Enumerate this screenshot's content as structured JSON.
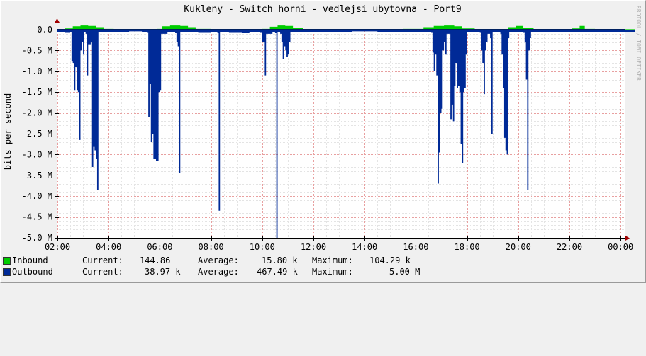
{
  "chart_data": {
    "type": "area",
    "title": "Kukleny - Switch horni - vedlejsi ubytovna - Port9",
    "ylabel": "bits per second",
    "watermark": "RRDTOOL / TOBI OETIKER",
    "y_tick_labels": [
      "0.0",
      "-0.5 M",
      "-1.0 M",
      "-1.5 M",
      "-2.0 M",
      "-2.5 M",
      "-3.0 M",
      "-3.5 M",
      "-4.0 M",
      "-4.5 M",
      "-5.0 M"
    ],
    "y_tick_values": [
      0,
      -0.5,
      -1.0,
      -1.5,
      -2.0,
      -2.5,
      -3.0,
      -3.5,
      -4.0,
      -4.5,
      -5.0
    ],
    "ylim": [
      -5.0,
      0.0
    ],
    "y_unit": "Mbit/s",
    "x_tick_labels": [
      "02:00",
      "04:00",
      "06:00",
      "08:00",
      "10:00",
      "12:00",
      "14:00",
      "16:00",
      "18:00",
      "20:00",
      "22:00",
      "00:00"
    ],
    "x_tick_hours": [
      0,
      2,
      4,
      6,
      8,
      10,
      12,
      14,
      16,
      18,
      20,
      22
    ],
    "x_range_hours": [
      0,
      22.5
    ],
    "grid": true,
    "legend_position": "bottom-left",
    "series": [
      {
        "name": "Inbound",
        "color": "#00cc00",
        "values_note": "",
        "points": [
          [
            0,
            0.01
          ],
          [
            0.3,
            0.03
          ],
          [
            0.6,
            0.08
          ],
          [
            0.9,
            0.1
          ],
          [
            1.2,
            0.09
          ],
          [
            1.5,
            0.06
          ],
          [
            1.8,
            0.02
          ],
          [
            2.2,
            0.01
          ],
          [
            2.8,
            0.01
          ],
          [
            3.5,
            0.01
          ],
          [
            3.9,
            0.02
          ],
          [
            4.1,
            0.08
          ],
          [
            4.4,
            0.1
          ],
          [
            4.8,
            0.09
          ],
          [
            5.1,
            0.06
          ],
          [
            5.4,
            0.02
          ],
          [
            6,
            0.01
          ],
          [
            7,
            0.01
          ],
          [
            8,
            0.02
          ],
          [
            8.3,
            0.07
          ],
          [
            8.6,
            0.1
          ],
          [
            8.9,
            0.09
          ],
          [
            9.2,
            0.05
          ],
          [
            9.6,
            0.01
          ],
          [
            10.5,
            0.01
          ],
          [
            11.5,
            0.01
          ],
          [
            12.5,
            0.01
          ],
          [
            13.5,
            0.02
          ],
          [
            14.3,
            0.06
          ],
          [
            14.7,
            0.09
          ],
          [
            15.1,
            0.1
          ],
          [
            15.5,
            0.08
          ],
          [
            15.8,
            0.03
          ],
          [
            16.3,
            0.01
          ],
          [
            17,
            0.01
          ],
          [
            17.6,
            0.06
          ],
          [
            17.9,
            0.09
          ],
          [
            18.2,
            0.05
          ],
          [
            18.6,
            0.01
          ],
          [
            19.5,
            0.01
          ],
          [
            20.1,
            0.03
          ],
          [
            20.4,
            0.09
          ],
          [
            20.6,
            0.02
          ],
          [
            21,
            0.01
          ],
          [
            22.5,
            0.01
          ]
        ]
      },
      {
        "name": "Outbound",
        "color": "#002a97",
        "points": [
          [
            0,
            -0.05
          ],
          [
            0.3,
            -0.06
          ],
          [
            0.5,
            -0.05
          ],
          [
            0.55,
            -0.75
          ],
          [
            0.6,
            -0.8
          ],
          [
            0.65,
            -1.45
          ],
          [
            0.7,
            -0.9
          ],
          [
            0.75,
            -1.45
          ],
          [
            0.8,
            -1.5
          ],
          [
            0.85,
            -2.65
          ],
          [
            0.9,
            -0.5
          ],
          [
            0.95,
            -0.3
          ],
          [
            1.0,
            -0.6
          ],
          [
            1.05,
            -0.05
          ],
          [
            1.1,
            -0.1
          ],
          [
            1.15,
            -1.1
          ],
          [
            1.2,
            -0.35
          ],
          [
            1.3,
            -0.3
          ],
          [
            1.35,
            -3.3
          ],
          [
            1.4,
            -2.8
          ],
          [
            1.45,
            -2.9
          ],
          [
            1.5,
            -3.1
          ],
          [
            1.55,
            -3.85
          ],
          [
            1.6,
            -0.05
          ],
          [
            2.2,
            -0.05
          ],
          [
            2.8,
            -0.04
          ],
          [
            3.3,
            -0.05
          ],
          [
            3.5,
            -0.06
          ],
          [
            3.55,
            -2.1
          ],
          [
            3.6,
            -1.3
          ],
          [
            3.65,
            -2.7
          ],
          [
            3.7,
            -2.5
          ],
          [
            3.75,
            -3.1
          ],
          [
            3.8,
            -3.1
          ],
          [
            3.85,
            -3.15
          ],
          [
            3.9,
            -3.15
          ],
          [
            3.95,
            -1.5
          ],
          [
            4.0,
            -1.45
          ],
          [
            4.05,
            -0.1
          ],
          [
            4.3,
            -0.05
          ],
          [
            4.6,
            -0.08
          ],
          [
            4.65,
            -0.3
          ],
          [
            4.7,
            -0.4
          ],
          [
            4.75,
            -3.45
          ],
          [
            4.8,
            -0.05
          ],
          [
            5.5,
            -0.06
          ],
          [
            6.0,
            -0.05
          ],
          [
            6.25,
            -0.07
          ],
          [
            6.3,
            -4.35
          ],
          [
            6.35,
            -0.05
          ],
          [
            6.7,
            -0.06
          ],
          [
            7.2,
            -0.07
          ],
          [
            7.5,
            -0.05
          ],
          [
            7.9,
            -0.06
          ],
          [
            8.0,
            -0.3
          ],
          [
            8.05,
            -0.3
          ],
          [
            8.1,
            -1.1
          ],
          [
            8.15,
            -0.1
          ],
          [
            8.4,
            -0.05
          ],
          [
            8.5,
            -0.07
          ],
          [
            8.55,
            -5.0
          ],
          [
            8.6,
            -0.05
          ],
          [
            8.7,
            -0.1
          ],
          [
            8.75,
            -0.3
          ],
          [
            8.8,
            -0.7
          ],
          [
            8.85,
            -0.4
          ],
          [
            8.9,
            -0.5
          ],
          [
            8.95,
            -0.65
          ],
          [
            9.0,
            -0.6
          ],
          [
            9.05,
            -0.3
          ],
          [
            9.1,
            -0.05
          ],
          [
            9.6,
            -0.05
          ],
          [
            10.5,
            -0.05
          ],
          [
            11.5,
            -0.04
          ],
          [
            12.5,
            -0.05
          ],
          [
            13.5,
            -0.05
          ],
          [
            14.6,
            -0.06
          ],
          [
            14.65,
            -0.55
          ],
          [
            14.7,
            -1.0
          ],
          [
            14.75,
            -0.6
          ],
          [
            14.8,
            -1.1
          ],
          [
            14.85,
            -3.7
          ],
          [
            14.9,
            -2.95
          ],
          [
            14.95,
            -2.0
          ],
          [
            15.0,
            -1.9
          ],
          [
            15.05,
            -0.5
          ],
          [
            15.1,
            -0.3
          ],
          [
            15.15,
            -0.6
          ],
          [
            15.2,
            -0.1
          ],
          [
            15.3,
            -0.1
          ],
          [
            15.35,
            -2.15
          ],
          [
            15.4,
            -1.8
          ],
          [
            15.45,
            -2.2
          ],
          [
            15.5,
            -1.35
          ],
          [
            15.55,
            -0.8
          ],
          [
            15.6,
            -1.4
          ],
          [
            15.65,
            -1.35
          ],
          [
            15.7,
            -1.5
          ],
          [
            15.75,
            -2.75
          ],
          [
            15.8,
            -3.2
          ],
          [
            15.85,
            -1.5
          ],
          [
            15.9,
            -1.4
          ],
          [
            15.95,
            -0.6
          ],
          [
            16.0,
            -0.05
          ],
          [
            16.3,
            -0.05
          ],
          [
            16.5,
            -0.06
          ],
          [
            16.55,
            -0.5
          ],
          [
            16.6,
            -0.8
          ],
          [
            16.65,
            -1.55
          ],
          [
            16.7,
            -0.5
          ],
          [
            16.75,
            -0.3
          ],
          [
            16.8,
            -0.1
          ],
          [
            16.9,
            -0.2
          ],
          [
            16.95,
            -2.5
          ],
          [
            17.0,
            -0.05
          ],
          [
            17.3,
            -0.1
          ],
          [
            17.35,
            -0.6
          ],
          [
            17.4,
            -1.4
          ],
          [
            17.45,
            -2.6
          ],
          [
            17.5,
            -2.9
          ],
          [
            17.55,
            -3.0
          ],
          [
            17.6,
            -0.2
          ],
          [
            17.65,
            -0.05
          ],
          [
            18.0,
            -0.05
          ],
          [
            18.2,
            -0.06
          ],
          [
            18.25,
            -0.3
          ],
          [
            18.3,
            -1.2
          ],
          [
            18.35,
            -3.85
          ],
          [
            18.4,
            -0.5
          ],
          [
            18.45,
            -0.2
          ],
          [
            18.5,
            -0.05
          ],
          [
            19.5,
            -0.05
          ],
          [
            20.5,
            -0.05
          ],
          [
            21.5,
            -0.05
          ],
          [
            22.5,
            -0.05
          ]
        ]
      }
    ]
  },
  "legend": [
    {
      "name": "Inbound",
      "color": "#00cc00",
      "current_label": "Current:",
      "current": "144.86",
      "average_label": "Average:",
      "average": "15.80 k",
      "maximum_label": "Maximum:",
      "maximum": "104.29 k"
    },
    {
      "name": "Outbound",
      "color": "#002a97",
      "current_label": "Current:",
      "current": "38.97 k",
      "average_label": "Average:",
      "average": "467.49 k",
      "maximum_label": "Maximum:",
      "maximum": "5.00 M"
    }
  ]
}
